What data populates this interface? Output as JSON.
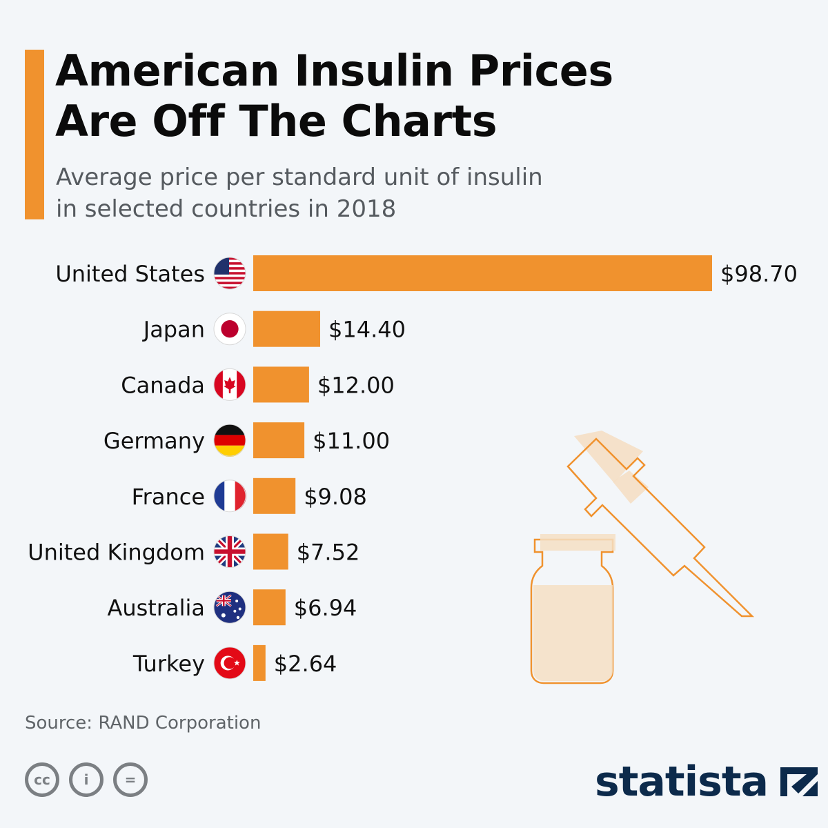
{
  "header": {
    "title_line1": "American Insulin Prices",
    "title_line2": "Are Off The Charts",
    "subtitle_line1": "Average price per standard unit of insulin",
    "subtitle_line2": "in selected countries in 2018",
    "accent_color": "#f0922e"
  },
  "chart_data": {
    "type": "bar",
    "orientation": "horizontal",
    "categories": [
      "United States",
      "Japan",
      "Canada",
      "Germany",
      "France",
      "United Kingdom",
      "Australia",
      "Turkey"
    ],
    "values": [
      98.7,
      14.4,
      12.0,
      11.0,
      9.08,
      7.52,
      6.94,
      2.64
    ],
    "value_labels": [
      "$98.70",
      "$14.40",
      "$12.00",
      "$11.00",
      "$9.08",
      "$7.52",
      "$6.94",
      "$2.64"
    ],
    "flag_icons": [
      "us-flag-icon",
      "japan-flag-icon",
      "canada-flag-icon",
      "germany-flag-icon",
      "france-flag-icon",
      "uk-flag-icon",
      "australia-flag-icon",
      "turkey-flag-icon"
    ],
    "xlim": [
      0,
      98.7
    ],
    "bar_color": "#f0922e",
    "grid": false,
    "legend": "none"
  },
  "illustration": {
    "icons": [
      "insulin-vial-icon",
      "syringe-icon"
    ],
    "stroke_color": "#f0922e",
    "fill_color": "#f5dfc4"
  },
  "footer": {
    "source": "Source: RAND Corporation",
    "license_icons": [
      "cc-icon",
      "attribution-icon",
      "no-derivatives-icon"
    ],
    "license_glyphs": [
      "cc",
      "i",
      "="
    ],
    "brand": "statista",
    "brand_color": "#0c2a4b"
  }
}
